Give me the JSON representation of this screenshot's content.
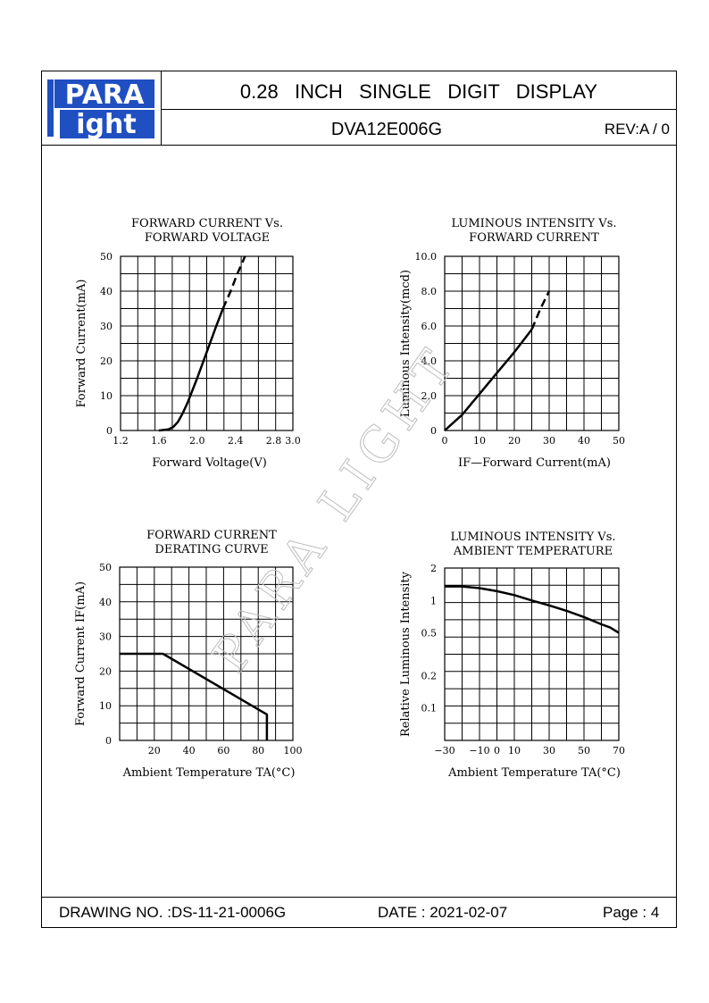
{
  "header": {
    "logo_text_top": "PARA",
    "logo_text_bottom": "ight",
    "title": "0.28   INCH   SINGLE   DIGIT   DISPLAY",
    "model": "DVA12E006G",
    "revision": "REV:A / 0"
  },
  "footer": {
    "drawing_no": "DRAWING NO. :DS-11-21-0006G",
    "date": "DATE : 2021-02-07",
    "page": "Page : 4"
  },
  "watermark": "PARA LIGHT",
  "colors": {
    "line": "#000000",
    "logo_blue": "#1f4fc0",
    "watermark": "#bdbdbd"
  },
  "chart_data": [
    {
      "type": "line",
      "title": "FORWARD CURRENT Vs.",
      "subtitle": "FORWARD VOLTAGE",
      "xlabel": "Forward Voltage(V)",
      "ylabel": "Forward Current(mA)",
      "xlim": [
        1.2,
        3.0
      ],
      "ylim": [
        0,
        50
      ],
      "xticks": [
        "1.2",
        "1.6",
        "2.0",
        "2.4",
        "2.8",
        "3.0"
      ],
      "xtick_values": [
        1.2,
        1.6,
        2.0,
        2.4,
        2.8,
        3.0
      ],
      "yticks": [
        "0",
        "10",
        "20",
        "30",
        "40",
        "50"
      ],
      "ytick_values": [
        0,
        10,
        20,
        30,
        40,
        50
      ],
      "grid": true,
      "series": [
        {
          "style": "solid",
          "x": [
            1.6,
            1.7,
            1.75,
            1.8,
            1.85,
            1.9,
            2.0,
            2.1,
            2.2,
            2.27
          ],
          "y": [
            0,
            0.3,
            1,
            2.5,
            5,
            8,
            15,
            22.5,
            30,
            35
          ]
        },
        {
          "style": "dashed",
          "x": [
            2.27,
            2.35,
            2.42,
            2.5
          ],
          "y": [
            35,
            40,
            45,
            50
          ]
        }
      ]
    },
    {
      "type": "line",
      "title": "LUMINOUS INTENSITY Vs.",
      "subtitle": "FORWARD CURRENT",
      "xlabel": "IF—Forward Current(mA)",
      "ylabel": "Luminous Intensity(mcd)",
      "xlim": [
        0,
        50
      ],
      "ylim": [
        0,
        10
      ],
      "xticks": [
        "0",
        "10",
        "20",
        "30",
        "40",
        "50"
      ],
      "xtick_values": [
        0,
        10,
        20,
        30,
        40,
        50
      ],
      "yticks": [
        "0",
        "2.0",
        "4.0",
        "6.0",
        "8.0",
        "10.0"
      ],
      "ytick_values": [
        0,
        2,
        4,
        6,
        8,
        10
      ],
      "grid": true,
      "series": [
        {
          "style": "solid",
          "x": [
            0,
            5,
            10,
            15,
            20,
            25
          ],
          "y": [
            0,
            0.9,
            2.1,
            3.3,
            4.5,
            5.8
          ]
        },
        {
          "style": "dashed",
          "x": [
            25,
            27.5,
            30
          ],
          "y": [
            5.8,
            7.0,
            8.0
          ]
        }
      ]
    },
    {
      "type": "line",
      "title": "FORWARD CURRENT",
      "subtitle": "DERATING CURVE",
      "xlabel": "Ambient Temperature TA(°C)",
      "ylabel": "Forward Current IF(mA)",
      "xlim": [
        0,
        100
      ],
      "ylim": [
        0,
        50
      ],
      "xticks": [
        "20",
        "40",
        "60",
        "80",
        "100"
      ],
      "xtick_values": [
        20,
        40,
        60,
        80,
        100
      ],
      "yticks": [
        "0",
        "10",
        "20",
        "30",
        "40",
        "50"
      ],
      "ytick_values": [
        0,
        10,
        20,
        30,
        40,
        50
      ],
      "grid": true,
      "series": [
        {
          "style": "solid",
          "x": [
            0,
            25,
            85,
            85
          ],
          "y": [
            25,
            25,
            7.5,
            0
          ]
        }
      ]
    },
    {
      "type": "line",
      "title": "LUMINOUS INTENSITY Vs.",
      "subtitle": "AMBIENT TEMPERATURE",
      "xlabel": "Ambient Temperature TA(°C)",
      "ylabel": "Relative Luminous Intensity",
      "xlim": [
        -30,
        70
      ],
      "ylim": [
        0.05,
        2
      ],
      "xticks": [
        "−30",
        "−10",
        "0",
        "10",
        "30",
        "50",
        "70"
      ],
      "xtick_values": [
        -30,
        -10,
        0,
        10,
        30,
        50,
        70
      ],
      "yticks": [
        "0.1",
        "0.2",
        "0.5",
        "1",
        "2"
      ],
      "ytick_values": [
        0.1,
        0.2,
        0.5,
        1,
        2
      ],
      "yscale": "log",
      "grid": true,
      "series": [
        {
          "style": "solid",
          "x": [
            -30,
            -20,
            -10,
            0,
            10,
            20,
            30,
            40,
            50,
            60,
            65,
            70
          ],
          "y": [
            1.35,
            1.35,
            1.3,
            1.22,
            1.12,
            1.0,
            0.9,
            0.8,
            0.7,
            0.6,
            0.56,
            0.5
          ]
        }
      ]
    }
  ]
}
